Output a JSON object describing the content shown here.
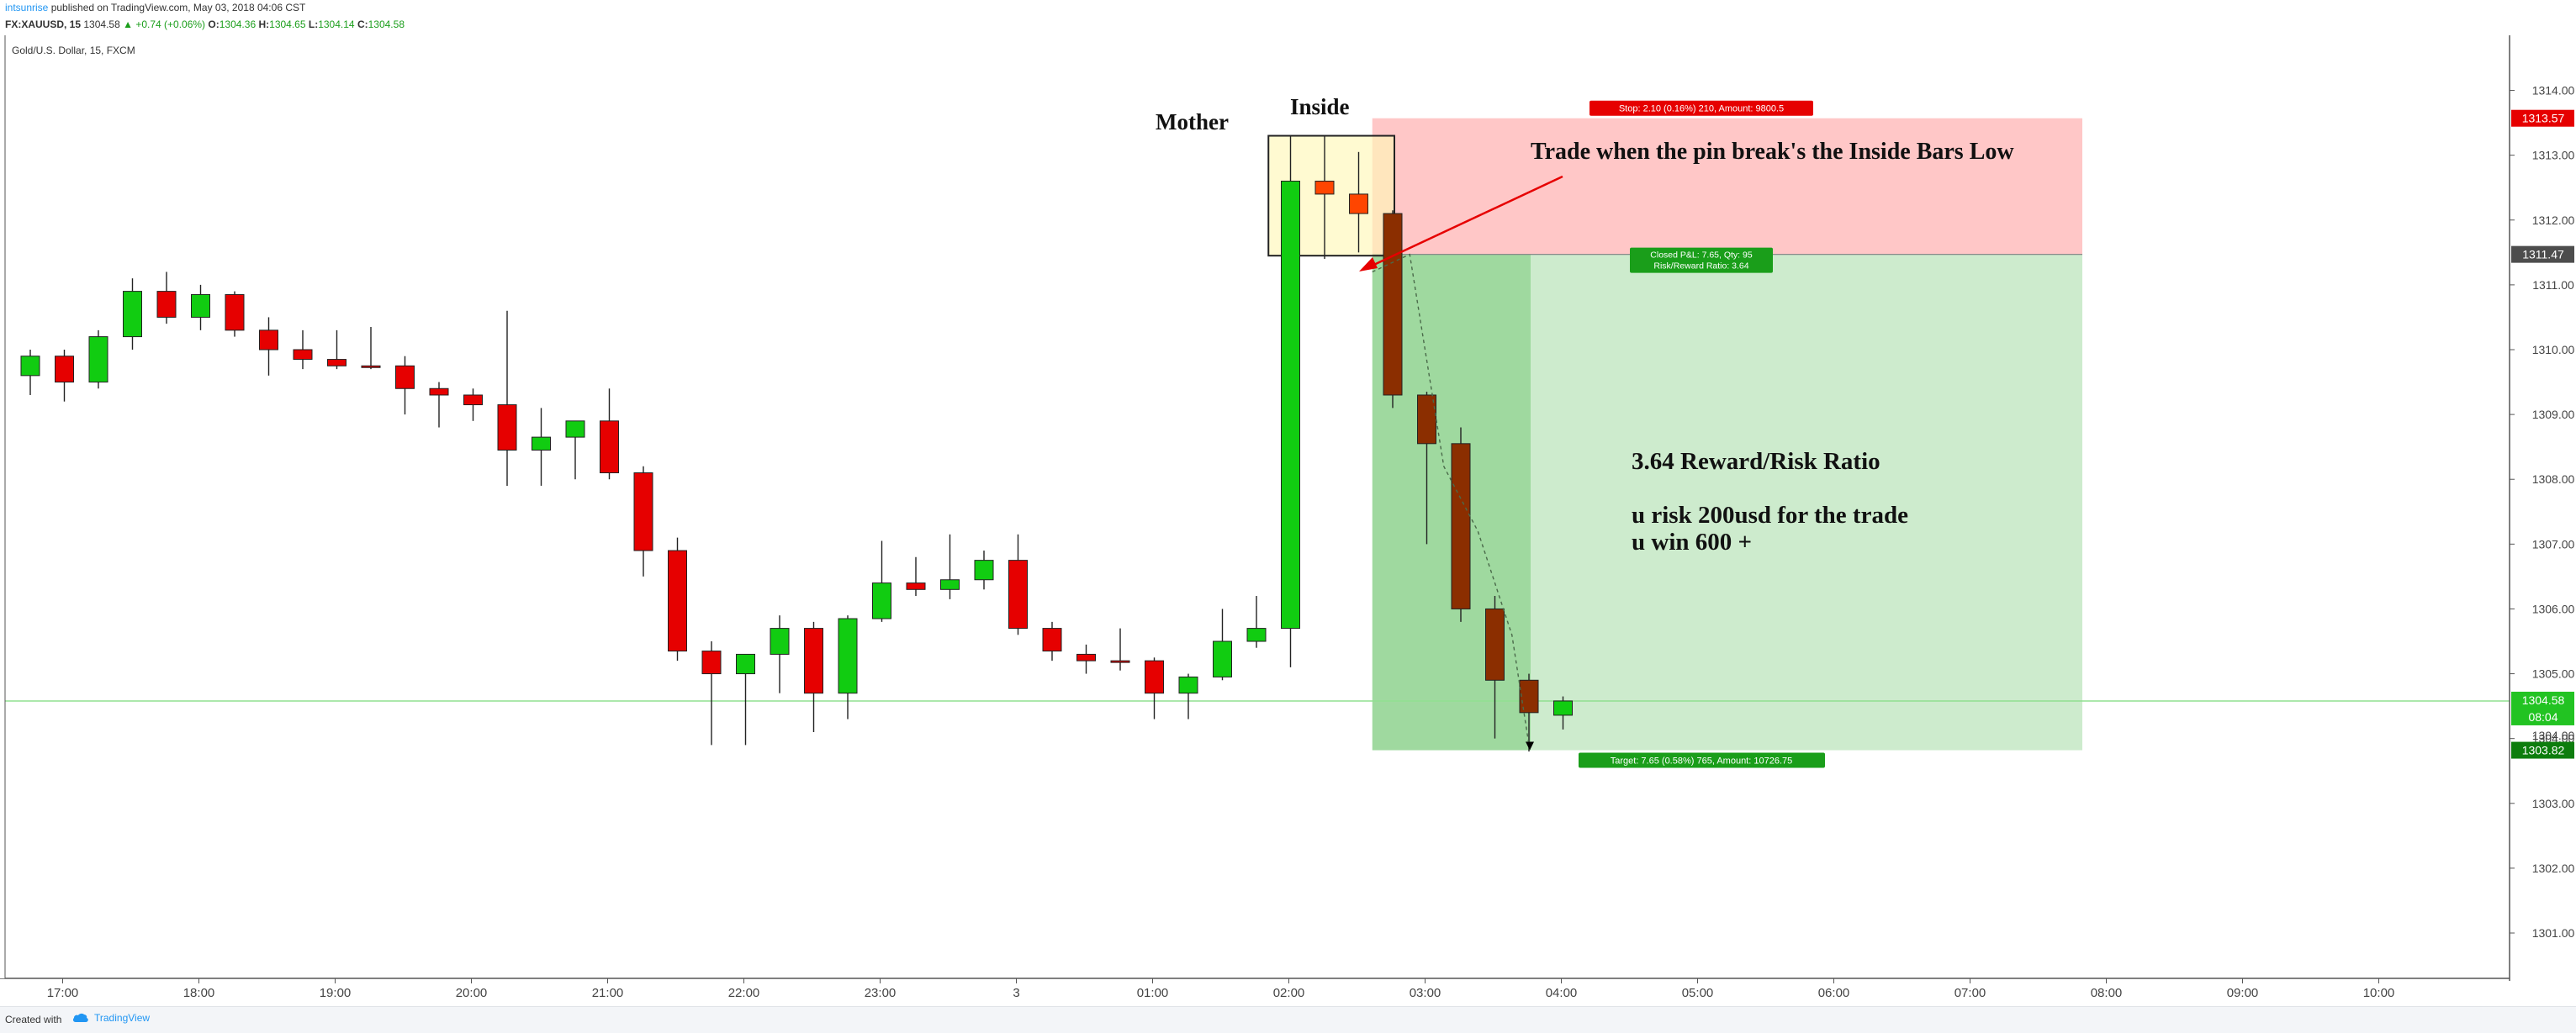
{
  "header": {
    "username": "intsunrise",
    "published_text": " published on TradingView.com, May 03, 2018 04:06 CST",
    "symbol": "FX:XAUUSD, 15",
    "last": "1304.58",
    "change": "▲ +0.74 (+0.06%)",
    "o_label": "O:",
    "o_value": "1304.36",
    "h_label": "H:",
    "h_value": "1304.65",
    "l_label": "L:",
    "l_value": "1304.14",
    "c_label": "C:",
    "c_value": "1304.58"
  },
  "footer": {
    "created_with": "Created with",
    "brand": "TradingView"
  },
  "colors": {
    "up": "#11cc11",
    "down": "#e60000",
    "brown": "#8b2e00",
    "orange": "#ff4500",
    "stop_zone": "#ffc7c7",
    "target_dark": "#9fd99f",
    "target_light": "#cdebcd",
    "price_line": "#90e090"
  },
  "chart_data": {
    "type": "candlestick",
    "title": "Gold/U.S. Dollar, 15, FXCM",
    "ylim": [
      1300.3,
      1314.85
    ],
    "y_ticks": [
      1301,
      1302,
      1303,
      1304,
      1305,
      1306,
      1307,
      1308,
      1309,
      1310,
      1311,
      1312,
      1313,
      1314
    ],
    "y_tick_labels": [
      "1301.00",
      "1302.00",
      "1303.00",
      "1304.00",
      "1305.00",
      "1306.00",
      "1307.00",
      "1308.00",
      "1309.00",
      "1310.00",
      "1311.00",
      "1312.00",
      "1313.00",
      "1314.00"
    ],
    "x_labels": [
      "17:00",
      "18:00",
      "19:00",
      "20:00",
      "21:00",
      "22:00",
      "23:00",
      "3",
      "01:00",
      "02:00",
      "03:00",
      "04:00",
      "05:00",
      "06:00",
      "07:00",
      "08:00",
      "09:00",
      "10:00"
    ],
    "x_label_positions_bar": [
      1,
      5,
      9,
      13,
      17,
      21,
      25,
      29,
      33,
      37,
      41,
      45,
      49,
      53,
      57,
      61,
      65,
      69
    ],
    "candles": [
      {
        "t": "16:45",
        "o": 1309.6,
        "h": 1310.0,
        "l": 1309.3,
        "c": 1309.9,
        "style": "up"
      },
      {
        "t": "17:00",
        "o": 1309.9,
        "h": 1310.0,
        "l": 1309.2,
        "c": 1309.5,
        "style": "down"
      },
      {
        "t": "17:15",
        "o": 1309.5,
        "h": 1310.3,
        "l": 1309.4,
        "c": 1310.2,
        "style": "up"
      },
      {
        "t": "17:30",
        "o": 1310.2,
        "h": 1311.1,
        "l": 1310.0,
        "c": 1310.9,
        "style": "up"
      },
      {
        "t": "17:45",
        "o": 1310.9,
        "h": 1311.2,
        "l": 1310.4,
        "c": 1310.5,
        "style": "down"
      },
      {
        "t": "18:00",
        "o": 1310.5,
        "h": 1311.0,
        "l": 1310.3,
        "c": 1310.85,
        "style": "up"
      },
      {
        "t": "18:15",
        "o": 1310.85,
        "h": 1310.9,
        "l": 1310.2,
        "c": 1310.3,
        "style": "down"
      },
      {
        "t": "18:30",
        "o": 1310.3,
        "h": 1310.5,
        "l": 1309.6,
        "c": 1310.0,
        "style": "down"
      },
      {
        "t": "18:45",
        "o": 1310.0,
        "h": 1310.3,
        "l": 1309.7,
        "c": 1309.85,
        "style": "down"
      },
      {
        "t": "19:00",
        "o": 1309.85,
        "h": 1310.3,
        "l": 1309.7,
        "c": 1309.75,
        "style": "down"
      },
      {
        "t": "19:15",
        "o": 1309.75,
        "h": 1310.35,
        "l": 1309.7,
        "c": 1309.75,
        "style": "down"
      },
      {
        "t": "19:30",
        "o": 1309.75,
        "h": 1309.9,
        "l": 1309.0,
        "c": 1309.4,
        "style": "down"
      },
      {
        "t": "19:45",
        "o": 1309.4,
        "h": 1309.5,
        "l": 1308.8,
        "c": 1309.3,
        "style": "down"
      },
      {
        "t": "20:00",
        "o": 1309.3,
        "h": 1309.4,
        "l": 1308.9,
        "c": 1309.15,
        "style": "down"
      },
      {
        "t": "20:15",
        "o": 1309.15,
        "h": 1310.6,
        "l": 1307.9,
        "c": 1308.45,
        "style": "down"
      },
      {
        "t": "20:30",
        "o": 1308.45,
        "h": 1309.1,
        "l": 1307.9,
        "c": 1308.65,
        "style": "up"
      },
      {
        "t": "20:45",
        "o": 1308.65,
        "h": 1308.9,
        "l": 1308.0,
        "c": 1308.9,
        "style": "up"
      },
      {
        "t": "21:00",
        "o": 1308.9,
        "h": 1309.4,
        "l": 1308.0,
        "c": 1308.1,
        "style": "down"
      },
      {
        "t": "21:15",
        "o": 1308.1,
        "h": 1308.2,
        "l": 1306.5,
        "c": 1306.9,
        "style": "down"
      },
      {
        "t": "21:30",
        "o": 1306.9,
        "h": 1307.1,
        "l": 1305.2,
        "c": 1305.35,
        "style": "down"
      },
      {
        "t": "21:45",
        "o": 1305.35,
        "h": 1305.5,
        "l": 1303.9,
        "c": 1305.0,
        "style": "down"
      },
      {
        "t": "22:00",
        "o": 1305.0,
        "h": 1305.3,
        "l": 1303.9,
        "c": 1305.3,
        "style": "up"
      },
      {
        "t": "22:15",
        "o": 1305.3,
        "h": 1305.9,
        "l": 1304.7,
        "c": 1305.7,
        "style": "up"
      },
      {
        "t": "22:30",
        "o": 1305.7,
        "h": 1305.8,
        "l": 1304.1,
        "c": 1304.7,
        "style": "down"
      },
      {
        "t": "22:45",
        "o": 1304.7,
        "h": 1305.9,
        "l": 1304.3,
        "c": 1305.85,
        "style": "up"
      },
      {
        "t": "23:00",
        "o": 1305.85,
        "h": 1307.05,
        "l": 1305.8,
        "c": 1306.4,
        "style": "up"
      },
      {
        "t": "23:15",
        "o": 1306.4,
        "h": 1306.8,
        "l": 1306.2,
        "c": 1306.3,
        "style": "down"
      },
      {
        "t": "23:30",
        "o": 1306.3,
        "h": 1307.15,
        "l": 1306.15,
        "c": 1306.45,
        "style": "up"
      },
      {
        "t": "23:45",
        "o": 1306.45,
        "h": 1306.9,
        "l": 1306.3,
        "c": 1306.75,
        "style": "up"
      },
      {
        "t": "00:00",
        "o": 1306.75,
        "h": 1307.15,
        "l": 1305.6,
        "c": 1305.7,
        "style": "down"
      },
      {
        "t": "00:15",
        "o": 1305.7,
        "h": 1305.8,
        "l": 1305.2,
        "c": 1305.35,
        "style": "down"
      },
      {
        "t": "00:30",
        "o": 1305.3,
        "h": 1305.45,
        "l": 1305.0,
        "c": 1305.2,
        "style": "down"
      },
      {
        "t": "00:45",
        "o": 1305.2,
        "h": 1305.7,
        "l": 1305.05,
        "c": 1305.2,
        "style": "down"
      },
      {
        "t": "01:00",
        "o": 1305.2,
        "h": 1305.25,
        "l": 1304.3,
        "c": 1304.7,
        "style": "down"
      },
      {
        "t": "01:15",
        "o": 1304.7,
        "h": 1305.0,
        "l": 1304.3,
        "c": 1304.95,
        "style": "up"
      },
      {
        "t": "01:30",
        "o": 1304.95,
        "h": 1306.0,
        "l": 1304.9,
        "c": 1305.5,
        "style": "up"
      },
      {
        "t": "01:45",
        "o": 1305.5,
        "h": 1306.2,
        "l": 1305.4,
        "c": 1305.7,
        "style": "up"
      },
      {
        "t": "02:00",
        "o": 1305.7,
        "h": 1313.3,
        "l": 1305.1,
        "c": 1312.6,
        "style": "up"
      },
      {
        "t": "02:15",
        "o": 1312.6,
        "h": 1313.3,
        "l": 1311.4,
        "c": 1312.4,
        "style": "orange"
      },
      {
        "t": "02:30",
        "o": 1312.4,
        "h": 1313.05,
        "l": 1311.5,
        "c": 1312.1,
        "style": "orange"
      },
      {
        "t": "02:45",
        "o": 1312.1,
        "h": 1312.15,
        "l": 1309.1,
        "c": 1309.3,
        "style": "brown"
      },
      {
        "t": "03:00",
        "o": 1309.3,
        "h": 1309.35,
        "l": 1307.0,
        "c": 1308.55,
        "style": "brown"
      },
      {
        "t": "03:15",
        "o": 1308.55,
        "h": 1308.8,
        "l": 1305.8,
        "c": 1306.0,
        "style": "brown"
      },
      {
        "t": "03:30",
        "o": 1306.0,
        "h": 1306.2,
        "l": 1304.0,
        "c": 1304.9,
        "style": "brown"
      },
      {
        "t": "03:45",
        "o": 1304.9,
        "h": 1305.0,
        "l": 1303.8,
        "c": 1304.4,
        "style": "brown"
      },
      {
        "t": "04:00",
        "o": 1304.36,
        "h": 1304.65,
        "l": 1304.14,
        "c": 1304.58,
        "style": "up"
      }
    ],
    "position": {
      "type": "short",
      "entry": 1311.47,
      "stop": 1313.57,
      "target": 1303.82,
      "stop_label": "Stop: 2.10 (0.16%) 210, Amount: 9800.5",
      "target_label": "Target: 7.65 (0.58%) 765, Amount: 10726.75",
      "pnl_label": "Closed P&L: 7.65, Qty: 95",
      "rr_label": "Risk/Reward Ratio: 3.64",
      "entry_price_label": "1311.47",
      "stop_price_label": "1313.57",
      "target_price_label": "1303.82"
    },
    "current_price": 1304.58,
    "current_price_label": "1304.58",
    "countdown_label": "08:04",
    "hidden_tick_label": "1304.00",
    "annotations": {
      "mother": "Mother",
      "inside": "Inside",
      "trade_note": "Trade when the pin break's the Inside Bars Low",
      "ratio_title": "3.64 Reward/Risk Ratio",
      "risk_line": "u risk 200usd for the trade",
      "win_line": "u win 600 +"
    }
  }
}
